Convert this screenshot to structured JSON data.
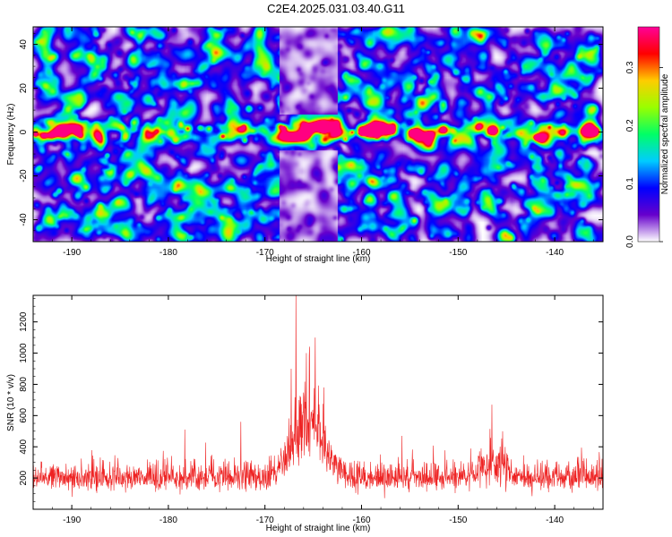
{
  "title": "C2E4.2025.031.03.40.G11",
  "chart_data": [
    {
      "type": "heatmap",
      "xlabel": "Height of straight line (km)",
      "ylabel": "Frequency (Hz)",
      "xlim": [
        -194,
        -135
      ],
      "ylim": [
        -50,
        48
      ],
      "xticks": [
        -190,
        -180,
        -170,
        -160,
        -150,
        -140
      ],
      "yticks": [
        -40,
        -20,
        0,
        20,
        40
      ],
      "colorbar": {
        "label": "Normalized spectral amplitude",
        "range": [
          0.0,
          0.37
        ],
        "ticks": [
          0.0,
          0.1,
          0.2,
          0.3
        ],
        "colormap": [
          "#ffffff",
          "#6600cc",
          "#0000ff",
          "#00ccff",
          "#00ff66",
          "#99ff00",
          "#ffcc00",
          "#ff0000",
          "#ff0099"
        ]
      },
      "ridge": {
        "frequency": 0,
        "peak_x": -163.5,
        "peak_value": 0.37
      },
      "quiet_band_x": [
        -168.5,
        -162.5
      ]
    },
    {
      "type": "line",
      "xlabel": "Height of straight line (km)",
      "ylabel": "SNR (10 * v/v)",
      "xlim": [
        -194,
        -135
      ],
      "ylim": [
        0,
        1370
      ],
      "xticks": [
        -190,
        -180,
        -170,
        -160,
        -150,
        -140
      ],
      "yticks": [
        200,
        400,
        600,
        800,
        1000,
        1200
      ],
      "color": "#ee2222",
      "baseline": 150,
      "peaks": [
        {
          "x": -166.8,
          "y": 1370
        },
        {
          "x": -164.8,
          "y": 1100
        },
        {
          "x": -165.7,
          "y": 1000
        },
        {
          "x": -167.3,
          "y": 900
        },
        {
          "x": -163.9,
          "y": 780
        },
        {
          "x": -146.5,
          "y": 670
        },
        {
          "x": -172.5,
          "y": 560
        },
        {
          "x": -178.3,
          "y": 510
        },
        {
          "x": -155.8,
          "y": 470
        }
      ]
    }
  ]
}
